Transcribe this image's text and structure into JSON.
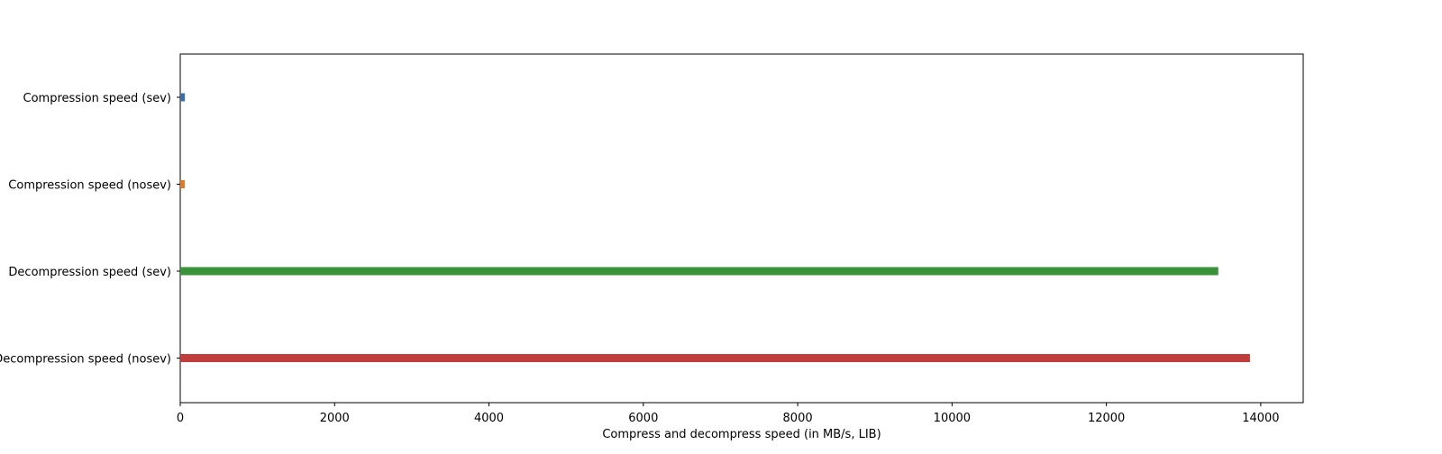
{
  "chart_data": {
    "type": "bar",
    "orientation": "horizontal",
    "categories": [
      "Compression speed (sev)",
      "Compression speed (nosev)",
      "Decompression speed (sev)",
      "Decompression speed (nosev)"
    ],
    "values": [
      60,
      58,
      13450,
      13860
    ],
    "colors": [
      "#3a6ea5",
      "#e0782c",
      "#3a923a",
      "#c03d3e"
    ],
    "xlabel": "Compress and decompress speed (in MB/s, LIB)",
    "ylabel": "",
    "title": "",
    "xlim": [
      0,
      14550
    ],
    "xticks": [
      0,
      2000,
      4000,
      6000,
      8000,
      10000,
      12000,
      14000
    ],
    "grid": false,
    "legend": "none"
  }
}
